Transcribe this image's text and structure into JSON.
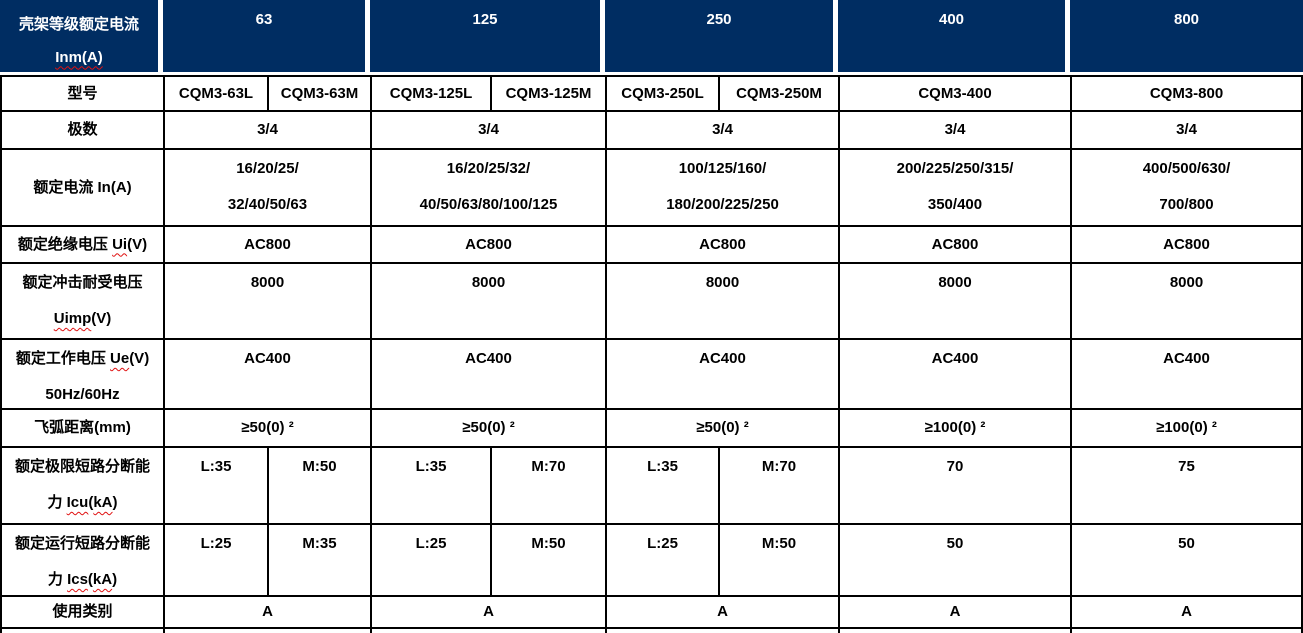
{
  "header": {
    "label_line1": "壳架等级额定电流",
    "label_line2": "Inm(A)",
    "columns": [
      "63",
      "125",
      "250",
      "400",
      "800"
    ]
  },
  "rows": {
    "model": {
      "label": "型号",
      "values": [
        "CQM3-63L",
        "CQM3-63M",
        "CQM3-125L",
        "CQM3-125M",
        "CQM3-250L",
        "CQM3-250M",
        "CQM3-400",
        "CQM3-800"
      ]
    },
    "poles": {
      "label": "极数",
      "values": [
        "3/4",
        "3/4",
        "3/4",
        "3/4",
        "3/4"
      ]
    },
    "rated_current": {
      "label": "额定电流 In(A)",
      "values": [
        {
          "line1": "16/20/25/",
          "line2": "32/40/50/63"
        },
        {
          "line1": "16/20/25/32/",
          "line2": "40/50/63/80/100/125"
        },
        {
          "line1": "100/125/160/",
          "line2": "180/200/225/250"
        },
        {
          "line1": "200/225/250/315/",
          "line2": "350/400"
        },
        {
          "line1": "400/500/630/",
          "line2": "700/800"
        }
      ]
    },
    "insulation_voltage": {
      "label_text": "额定绝缘电压",
      "label_code": "Ui",
      "label_paren": "(V)",
      "values": [
        "AC800",
        "AC800",
        "AC800",
        "AC800",
        "AC800"
      ]
    },
    "impulse_voltage": {
      "label_line1": "额定冲击耐受电压",
      "label_code": "Uimp",
      "label_paren": "(V)",
      "values": [
        "8000",
        "8000",
        "8000",
        "8000",
        "8000"
      ]
    },
    "working_voltage": {
      "label_text": "额定工作电压",
      "label_code": "Ue",
      "label_paren": "(V)",
      "label_line2": "50Hz/60Hz",
      "values": [
        "AC400",
        "AC400",
        "AC400",
        "AC400",
        "AC400"
      ]
    },
    "arc_distance": {
      "label": "飞弧距离(mm)",
      "values": [
        "≥50(0) ²",
        "≥50(0) ²",
        "≥50(0) ²",
        "≥100(0) ²",
        "≥100(0) ²"
      ]
    },
    "icu": {
      "label_line1": "额定极限短路分断能",
      "label_prefix2": "力 ",
      "label_code": "Icu",
      "label_open": "(",
      "label_unit": "kA",
      "label_close": ")",
      "values": [
        "L:35",
        "M:50",
        "L:35",
        "M:70",
        "L:35",
        "M:70",
        "70",
        "75"
      ]
    },
    "ics": {
      "label_line1": "额定运行短路分断能",
      "label_prefix2": "力 ",
      "label_code": "Ics",
      "label_open": "(",
      "label_unit": "kA",
      "label_close": ")",
      "values": [
        "L:25",
        "M:35",
        "L:25",
        "M:50",
        "L:25",
        "M:50",
        "50",
        "50"
      ]
    },
    "usage_category": {
      "label": "使用类别",
      "values": [
        "A",
        "A",
        "A",
        "A",
        "A"
      ]
    }
  },
  "colors": {
    "header_bg": "#002d62",
    "header_text": "#ffffff",
    "body_text": "#000000",
    "border": "#000000",
    "squiggle": "#e01010"
  }
}
